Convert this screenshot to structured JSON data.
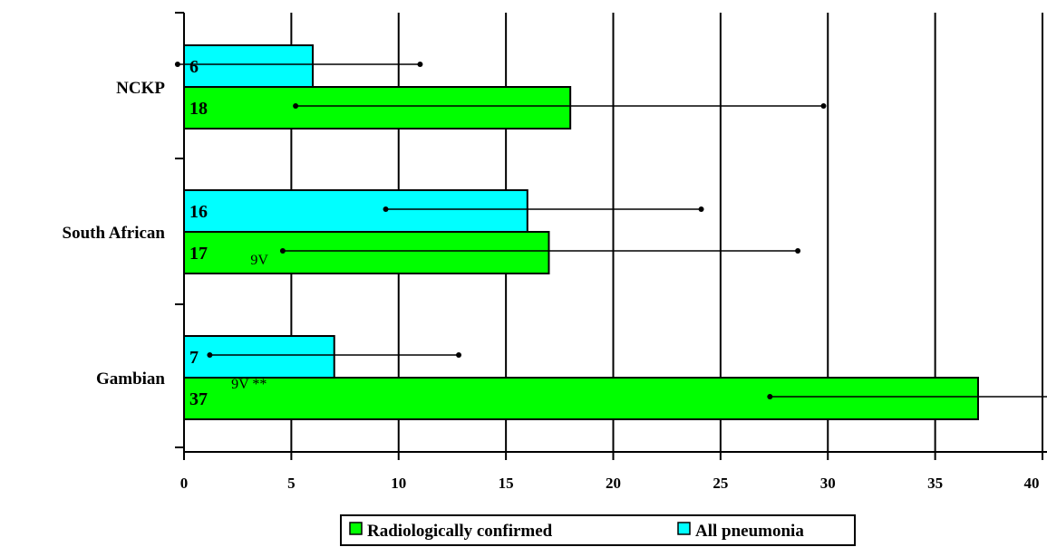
{
  "chart_data": {
    "type": "bar",
    "orientation": "horizontal",
    "categories": [
      "NCKP",
      "South African",
      "Gambian"
    ],
    "xlim": [
      0,
      40
    ],
    "xticks": [
      0,
      5,
      10,
      15,
      20,
      25,
      30,
      35,
      40
    ],
    "grid": true,
    "series": [
      {
        "name": "All pneumonia",
        "color": "#00ffff",
        "values": [
          6,
          16,
          7
        ],
        "labels": [
          "6",
          "16",
          "7"
        ],
        "ci_low": [
          -0.3,
          9.4,
          1.2
        ],
        "ci_high": [
          11,
          24.1,
          12.8
        ]
      },
      {
        "name": "Radiologically confirmed",
        "color": "#00ff00",
        "values": [
          18,
          17,
          37
        ],
        "labels": [
          "18",
          "17",
          "37"
        ],
        "ci_low": [
          5.2,
          4.6,
          27.3
        ],
        "ci_high": [
          29.8,
          28.6,
          41.5
        ]
      }
    ],
    "annotations": [
      {
        "text": "9V",
        "category": "South African",
        "x": 3.1
      },
      {
        "text": "9V **",
        "category": "Gambian",
        "x": 2.2
      }
    ],
    "legend": {
      "placement": "bottom-center",
      "entries": [
        "Radiologically confirmed",
        "All pneumonia"
      ]
    }
  }
}
